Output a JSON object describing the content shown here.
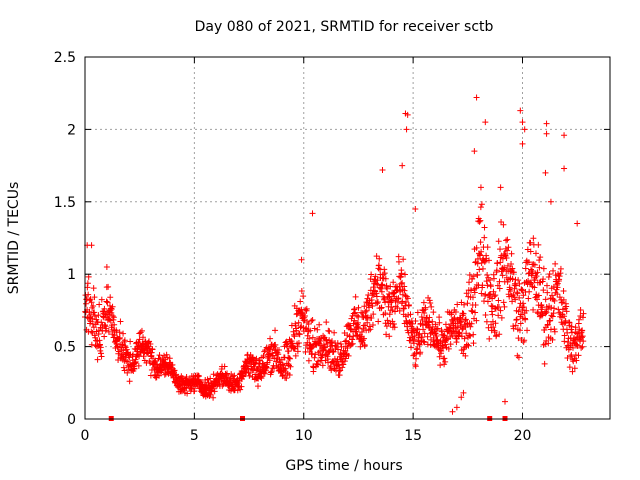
{
  "chart_data": {
    "type": "scatter",
    "title": "Day 080 of 2021, SRMTID for receiver sctb",
    "xlabel": "GPS time / hours",
    "ylabel": "SRMTID / TECUs",
    "xlim": [
      0,
      24
    ],
    "ylim": [
      0,
      2.5
    ],
    "xticks": [
      0,
      5,
      10,
      15,
      20
    ],
    "yticks": [
      0,
      0.5,
      1,
      1.5,
      2,
      2.5
    ],
    "ytick_labels": [
      "0",
      "0.5",
      "1",
      "1.5",
      "2",
      "2.5"
    ],
    "grid": true,
    "marker": "+",
    "color": "#ff0000",
    "zero_markers_x": [
      1.2,
      7.2,
      18.5,
      19.2
    ],
    "series": [
      {
        "name": "SRMTID",
        "trend": {
          "x": [
            0,
            0.5,
            1,
            1.5,
            2,
            3,
            4,
            5,
            6,
            7,
            8,
            9,
            10,
            11,
            12,
            13,
            14,
            15,
            16,
            17,
            18,
            19,
            20,
            21,
            22,
            22.8
          ],
          "y": [
            0.75,
            0.55,
            0.85,
            0.45,
            0.45,
            0.45,
            0.3,
            0.22,
            0.25,
            0.28,
            0.4,
            0.4,
            0.65,
            0.45,
            0.5,
            0.8,
            0.9,
            0.6,
            0.6,
            0.55,
            1.0,
            0.95,
            0.85,
            0.9,
            0.65,
            0.5
          ],
          "spread": [
            0.3,
            0.25,
            0.25,
            0.2,
            0.18,
            0.15,
            0.1,
            0.08,
            0.1,
            0.1,
            0.18,
            0.2,
            0.3,
            0.2,
            0.2,
            0.3,
            0.4,
            0.25,
            0.2,
            0.25,
            0.5,
            0.45,
            0.4,
            0.45,
            0.3,
            0.2
          ]
        },
        "outliers": [
          {
            "x": 0.1,
            "y": 1.2
          },
          {
            "x": 0.3,
            "y": 1.2
          },
          {
            "x": 1.0,
            "y": 1.05
          },
          {
            "x": 10.4,
            "y": 1.42
          },
          {
            "x": 9.9,
            "y": 1.1
          },
          {
            "x": 13.6,
            "y": 1.72
          },
          {
            "x": 14.65,
            "y": 2.11
          },
          {
            "x": 14.75,
            "y": 2.1
          },
          {
            "x": 14.7,
            "y": 2.0
          },
          {
            "x": 14.5,
            "y": 1.75
          },
          {
            "x": 15.1,
            "y": 1.45
          },
          {
            "x": 16.8,
            "y": 0.05
          },
          {
            "x": 17.0,
            "y": 0.08
          },
          {
            "x": 17.2,
            "y": 0.15
          },
          {
            "x": 17.3,
            "y": 0.18
          },
          {
            "x": 17.9,
            "y": 2.22
          },
          {
            "x": 18.3,
            "y": 2.05
          },
          {
            "x": 17.8,
            "y": 1.85
          },
          {
            "x": 19.2,
            "y": 0.12
          },
          {
            "x": 19.9,
            "y": 2.13
          },
          {
            "x": 20.0,
            "y": 2.05
          },
          {
            "x": 20.1,
            "y": 2.0
          },
          {
            "x": 21.1,
            "y": 2.04
          },
          {
            "x": 21.1,
            "y": 1.97
          },
          {
            "x": 21.05,
            "y": 1.7
          },
          {
            "x": 21.9,
            "y": 1.96
          },
          {
            "x": 21.9,
            "y": 1.73
          },
          {
            "x": 20.0,
            "y": 1.9
          },
          {
            "x": 18.1,
            "y": 1.6
          },
          {
            "x": 22.5,
            "y": 1.35
          },
          {
            "x": 21.3,
            "y": 1.5
          },
          {
            "x": 19.0,
            "y": 1.6
          }
        ]
      }
    ]
  }
}
